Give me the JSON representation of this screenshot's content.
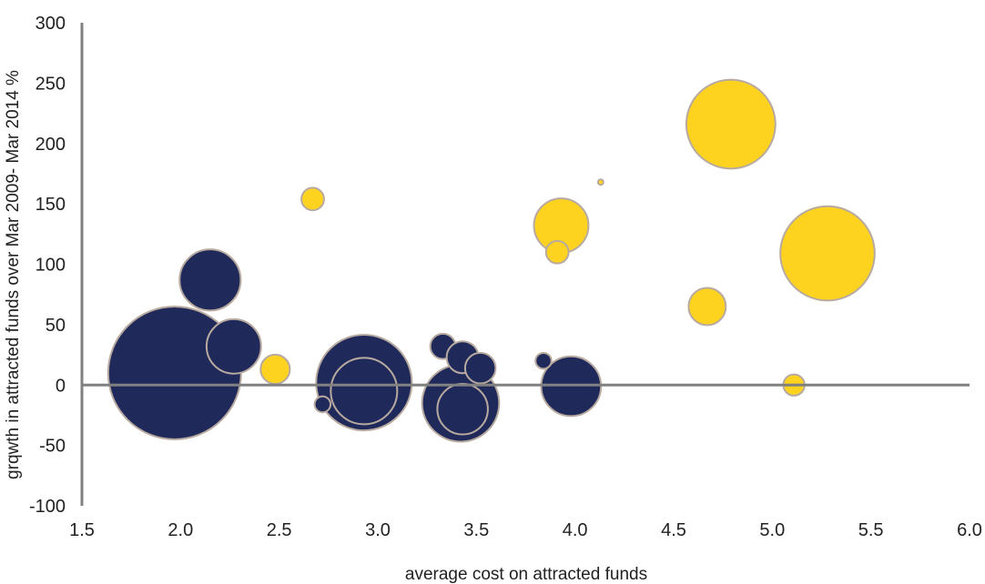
{
  "chart_data": {
    "type": "scatter",
    "subtype": "bubble",
    "xlabel": "average cost on attracted funds",
    "ylabel": "grqwth in attracted funds  over Mar 2009- Mar 2014 %",
    "xlim": [
      1.5,
      6.0
    ],
    "ylim": [
      -100,
      300
    ],
    "x_ticks": [
      "1.5",
      "2.0",
      "2.5",
      "3.0",
      "3.5",
      "4.0",
      "4.5",
      "5.0",
      "5.5",
      "6.0"
    ],
    "y_ticks": [
      "300",
      "250",
      "200",
      "150",
      "100",
      "50",
      "0",
      "-50",
      "-100"
    ],
    "grid": false,
    "legend": "none",
    "colors": {
      "navy": "#202a5a",
      "yellow": "#fdd31f",
      "outline": "#b8aaa0",
      "axis": "#808080"
    },
    "series": [
      {
        "color_key": "navy",
        "points": [
          {
            "x": 1.97,
            "y": 10,
            "size": 1.0
          },
          {
            "x": 2.93,
            "y": 2,
            "size": 0.72
          },
          {
            "x": 3.42,
            "y": -15,
            "size": 0.58
          },
          {
            "x": 3.98,
            "y": -1,
            "size": 0.45
          },
          {
            "x": 2.15,
            "y": 87,
            "size": 0.46
          },
          {
            "x": 2.27,
            "y": 32,
            "size": 0.41
          },
          {
            "x": 2.93,
            "y": -5,
            "size": 0.5
          },
          {
            "x": 3.43,
            "y": -20,
            "size": 0.38
          },
          {
            "x": 3.33,
            "y": 32,
            "size": 0.19
          },
          {
            "x": 3.43,
            "y": 23,
            "size": 0.24
          },
          {
            "x": 3.52,
            "y": 14,
            "size": 0.23
          },
          {
            "x": 3.84,
            "y": 20,
            "size": 0.12
          },
          {
            "x": 2.72,
            "y": -16,
            "size": 0.12
          }
        ]
      },
      {
        "color_key": "yellow",
        "points": [
          {
            "x": 4.79,
            "y": 216,
            "size": 0.67
          },
          {
            "x": 5.28,
            "y": 109,
            "size": 0.71
          },
          {
            "x": 3.93,
            "y": 132,
            "size": 0.41
          },
          {
            "x": 3.91,
            "y": 110,
            "size": 0.17
          },
          {
            "x": 4.67,
            "y": 65,
            "size": 0.28
          },
          {
            "x": 2.48,
            "y": 13,
            "size": 0.22
          },
          {
            "x": 2.67,
            "y": 154,
            "size": 0.17
          },
          {
            "x": 5.11,
            "y": 0,
            "size": 0.16
          },
          {
            "x": 4.13,
            "y": 168,
            "size": 0.04
          }
        ]
      }
    ]
  }
}
